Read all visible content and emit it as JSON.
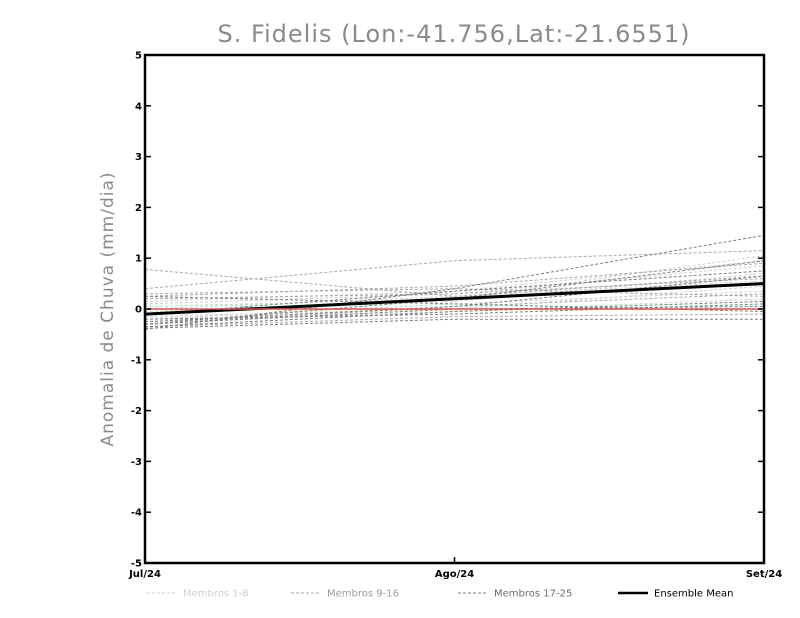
{
  "chart_data": {
    "type": "line",
    "title": "S. Fidelis (Lon:-41.756,Lat:-21.6551)",
    "ylabel": "Anomalia de Chuva (mm/dia)",
    "xlabel": "",
    "categories": [
      "Jul/24",
      "Ago/24",
      "Set/24"
    ],
    "ylim": [
      -5,
      5
    ],
    "yticks": [
      "5",
      "4",
      "3",
      "2",
      "1",
      "0",
      "-1",
      "-2",
      "-3",
      "-4",
      "-5"
    ],
    "grid": false,
    "legend_position": "bottom",
    "legend": [
      {
        "label": "Membros 1-8",
        "color": "#d0d0d0",
        "style": "dashed"
      },
      {
        "label": "Membros 9-16",
        "color": "#a9a9a9",
        "style": "dashed"
      },
      {
        "label": "Membros 17-25",
        "color": "#7d7d7d",
        "style": "dashed"
      },
      {
        "label": "Ensemble Mean",
        "color": "#000000",
        "style": "solid"
      }
    ],
    "series": [
      {
        "group": 1,
        "color": "#d0d0d0",
        "values": [
          0.05,
          0.2,
          1.05
        ]
      },
      {
        "group": 1,
        "color": "#d0d0d0",
        "values": [
          0.1,
          0.3,
          0.85
        ]
      },
      {
        "group": 1,
        "color": "#d0d0d0",
        "values": [
          -0.05,
          0.15,
          0.7
        ]
      },
      {
        "group": 1,
        "color": "#d0d0d0",
        "values": [
          -0.15,
          0.0,
          0.45
        ]
      },
      {
        "group": 1,
        "color": "#d0d0d0",
        "values": [
          -0.2,
          0.1,
          0.35
        ]
      },
      {
        "group": 1,
        "color": "#d0d0d0",
        "values": [
          0.0,
          0.25,
          0.55
        ]
      },
      {
        "group": 1,
        "color": "#d0d0d0",
        "values": [
          -0.25,
          -0.05,
          0.2
        ]
      },
      {
        "group": 1,
        "color": "#d0d0d0",
        "values": [
          0.15,
          0.35,
          0.95
        ]
      },
      {
        "group": 2,
        "color": "#a9a9a9",
        "values": [
          0.4,
          0.95,
          1.15
        ]
      },
      {
        "group": 2,
        "color": "#a9a9a9",
        "values": [
          0.78,
          0.25,
          0.65
        ]
      },
      {
        "group": 2,
        "color": "#a9a9a9",
        "values": [
          0.25,
          0.45,
          0.9
        ]
      },
      {
        "group": 2,
        "color": "#a9a9a9",
        "values": [
          -0.3,
          0.05,
          0.3
        ]
      },
      {
        "group": 2,
        "color": "#a9a9a9",
        "values": [
          -0.35,
          -0.15,
          -0.1
        ]
      },
      {
        "group": 2,
        "color": "#a9a9a9",
        "values": [
          0.2,
          0.3,
          0.6
        ]
      },
      {
        "group": 2,
        "color": "#a9a9a9",
        "values": [
          -0.1,
          0.2,
          0.5
        ]
      },
      {
        "group": 2,
        "color": "#a9a9a9",
        "values": [
          0.3,
          0.4,
          0.25
        ]
      },
      {
        "group": 3,
        "color": "#7d7d7d",
        "values": [
          -0.4,
          0.4,
          1.45
        ]
      },
      {
        "group": 3,
        "color": "#7d7d7d",
        "values": [
          -0.3,
          0.2,
          0.95
        ]
      },
      {
        "group": 3,
        "color": "#7d7d7d",
        "values": [
          -0.2,
          -0.1,
          0.1
        ]
      },
      {
        "group": 3,
        "color": "#7d7d7d",
        "values": [
          -0.38,
          -0.2,
          -0.2
        ]
      },
      {
        "group": 3,
        "color": "#7d7d7d",
        "values": [
          -0.25,
          0.05,
          0.65
        ]
      },
      {
        "group": 3,
        "color": "#7d7d7d",
        "values": [
          -0.1,
          0.35,
          0.75
        ]
      },
      {
        "group": 3,
        "color": "#7d7d7d",
        "values": [
          -0.35,
          -0.05,
          0.15
        ]
      },
      {
        "group": 3,
        "color": "#7d7d7d",
        "values": [
          -0.3,
          0.0,
          0.05
        ]
      },
      {
        "group": 3,
        "color": "#7d7d7d",
        "values": [
          0.25,
          0.1,
          -0.05
        ]
      },
      {
        "group": 0,
        "name": "Ensemble Mean",
        "color": "#000000",
        "values": [
          -0.1,
          0.2,
          0.5
        ]
      },
      {
        "group": 0,
        "color": "#e05050",
        "values": [
          0.0,
          0.0,
          0.0
        ]
      }
    ]
  }
}
